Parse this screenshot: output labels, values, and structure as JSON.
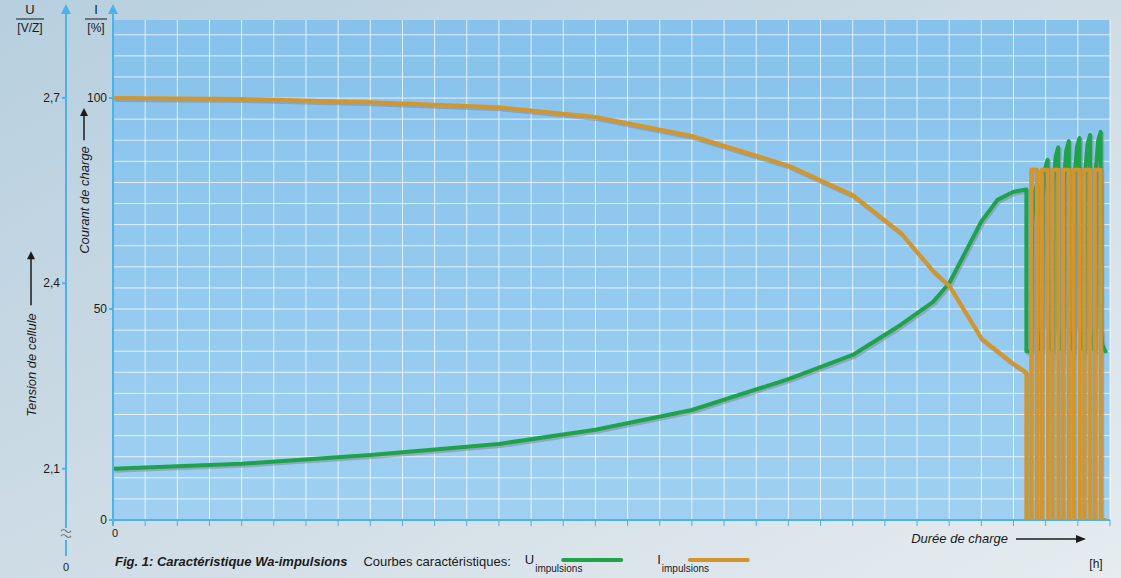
{
  "chart_data": {
    "type": "line",
    "title": "Fig. 1: Caractéristique Wa-impulsions",
    "x_label": "Durée de charge",
    "x_unit": "[h]",
    "y_symbol": "I",
    "y_unit": "[%]",
    "y_label": "Courant de charge",
    "y2_symbol": "U",
    "y2_unit": "[V/Z]",
    "y2_label": "Tension de cellule",
    "y2_origin_label": "0",
    "legend_title": "Courbes caractéristiques:",
    "legend": "bottom",
    "grid": true,
    "xlim": [
      0,
      31
    ],
    "xticks": [
      0
    ],
    "xminorticks": [
      0,
      1,
      2,
      3,
      4,
      5,
      6,
      7,
      8,
      9,
      10,
      11,
      12,
      13,
      14,
      15,
      16,
      17,
      18,
      19,
      20,
      21,
      22,
      23,
      24,
      25,
      26,
      27,
      28,
      29,
      30,
      31
    ],
    "ylim": [
      0,
      118.5
    ],
    "yticks": [
      0,
      50,
      100
    ],
    "yminorticks": [
      0,
      5,
      10,
      15,
      20,
      25,
      30,
      35,
      40,
      45,
      50,
      55,
      60,
      65,
      70,
      75,
      80,
      85,
      90,
      95,
      100,
      105,
      110,
      115
    ],
    "y2lim": [
      2.017,
      2.826
    ],
    "y2ticks": [
      {
        "value": 2.1,
        "label": "2,1"
      },
      {
        "value": 2.4,
        "label": "2,4"
      },
      {
        "value": 2.7,
        "label": "2,7"
      }
    ],
    "series": [
      {
        "name": "U",
        "name_sub": "impulsions",
        "color": "#1fa34a",
        "axis": "y2",
        "x": [
          0,
          4,
          8,
          12,
          15,
          18,
          21,
          23,
          24.5,
          25.5,
          26,
          26.5,
          27,
          27.5,
          28,
          28.4,
          28.4,
          28.55,
          28.58,
          28.65,
          28.73,
          28.73,
          28.78,
          28.88,
          28.91,
          28.98,
          29.06,
          29.06,
          29.11,
          29.21,
          29.24,
          29.31,
          29.39,
          29.39,
          29.44,
          29.54,
          29.57,
          29.64,
          29.72,
          29.72,
          29.77,
          29.87,
          29.9,
          29.97,
          30.05,
          30.05,
          30.1,
          30.2,
          30.23,
          30.3,
          30.38,
          30.38,
          30.43,
          30.53,
          30.56,
          30.63,
          30.71,
          30.71,
          30.76,
          30.85
        ],
        "values": [
          2.1,
          2.108,
          2.122,
          2.14,
          2.163,
          2.195,
          2.245,
          2.284,
          2.333,
          2.37,
          2.4,
          2.45,
          2.5,
          2.535,
          2.548,
          2.552,
          2.29,
          2.29,
          2.5,
          2.545,
          2.56,
          2.33,
          2.3,
          2.29,
          2.54,
          2.585,
          2.6,
          2.33,
          2.3,
          2.29,
          2.56,
          2.605,
          2.62,
          2.33,
          2.3,
          2.29,
          2.57,
          2.615,
          2.63,
          2.33,
          2.3,
          2.29,
          2.575,
          2.62,
          2.635,
          2.33,
          2.3,
          2.29,
          2.58,
          2.625,
          2.64,
          2.33,
          2.3,
          2.29,
          2.585,
          2.63,
          2.645,
          2.33,
          2.3,
          2.29
        ]
      },
      {
        "name": "I",
        "name_sub": "impulsions",
        "color": "#d4962a",
        "axis": "y",
        "x": [
          0,
          4,
          8,
          12,
          15,
          18,
          21,
          23,
          24.5,
          25.5,
          26,
          27,
          28,
          28.4,
          28.4,
          28.55,
          28.55,
          28.73,
          28.73,
          28.88,
          28.88,
          29.06,
          29.06,
          29.21,
          29.21,
          29.39,
          29.39,
          29.54,
          29.54,
          29.72,
          29.72,
          29.87,
          29.87,
          30.05,
          30.05,
          30.2,
          30.2,
          30.38,
          30.38,
          30.53,
          30.53,
          30.71,
          30.71,
          30.85
        ],
        "values": [
          100,
          99.8,
          99,
          97.8,
          95.5,
          91,
          84,
          77,
          68,
          59,
          55.5,
          43,
          37,
          35,
          0,
          0,
          83,
          83,
          0,
          0,
          83,
          83,
          0,
          0,
          83,
          83,
          0,
          0,
          83,
          83,
          0,
          0,
          83,
          83,
          0,
          0,
          83,
          83,
          0,
          0,
          83,
          83,
          0,
          0
        ]
      }
    ]
  }
}
